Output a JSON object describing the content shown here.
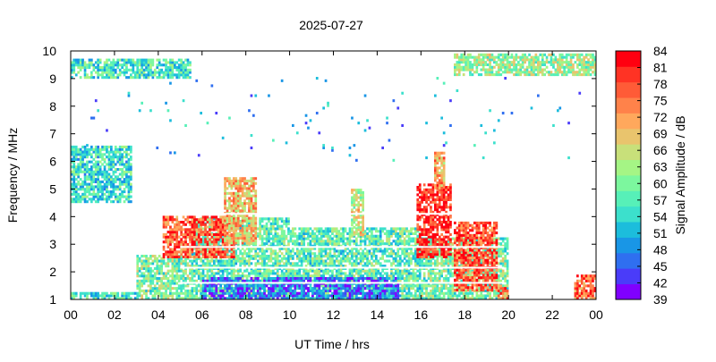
{
  "chart_data": {
    "type": "heatmap",
    "title": "2025-07-27",
    "xlabel": "UT Time / hrs",
    "ylabel": "Frequency / MHz",
    "colorbar_label": "Signal Amplitude / dB",
    "xlim": [
      0,
      24
    ],
    "ylim": [
      1,
      10
    ],
    "x_ticks": [
      "00",
      "02",
      "04",
      "06",
      "08",
      "10",
      "12",
      "14",
      "16",
      "18",
      "20",
      "22",
      "00"
    ],
    "y_ticks": [
      "1",
      "2",
      "3",
      "4",
      "5",
      "6",
      "7",
      "8",
      "9",
      "10"
    ],
    "colorbar_ticks": [
      "84",
      "81",
      "78",
      "75",
      "72",
      "69",
      "66",
      "63",
      "60",
      "57",
      "54",
      "51",
      "48",
      "45",
      "42",
      "39"
    ],
    "clim": [
      39,
      84
    ],
    "colormap": [
      "#8000ff",
      "#4a3cf9",
      "#2f6ff0",
      "#1996e6",
      "#1cbddc",
      "#3ce0cc",
      "#57f0b8",
      "#7cf79e",
      "#a5f585",
      "#c8e07a",
      "#e9c46d",
      "#ffa85c",
      "#ff824a",
      "#ff5b37",
      "#ff3324",
      "#ff0010"
    ],
    "regions": [
      {
        "t0": 0.0,
        "t1": 3.0,
        "f0": 1.0,
        "f1": 1.25,
        "level": 56
      },
      {
        "t0": 3.0,
        "t1": 5.5,
        "f0": 1.0,
        "f1": 2.6,
        "level": 60
      },
      {
        "t0": 5.5,
        "t1": 10.0,
        "f0": 1.0,
        "f1": 3.9,
        "level": 58
      },
      {
        "t0": 10.0,
        "t1": 16.0,
        "f0": 1.0,
        "f1": 3.6,
        "level": 58
      },
      {
        "t0": 16.0,
        "t1": 20.0,
        "f0": 1.0,
        "f1": 3.2,
        "level": 60
      },
      {
        "t0": 4.2,
        "t1": 7.5,
        "f0": 2.5,
        "f1": 4.0,
        "level": 77
      },
      {
        "t0": 7.0,
        "t1": 8.5,
        "f0": 3.0,
        "f1": 5.4,
        "level": 70
      },
      {
        "t0": 12.8,
        "t1": 13.4,
        "f0": 3.3,
        "f1": 5.0,
        "level": 66
      },
      {
        "t0": 15.8,
        "t1": 17.4,
        "f0": 2.5,
        "f1": 5.2,
        "level": 81
      },
      {
        "t0": 16.6,
        "t1": 17.1,
        "f0": 5.0,
        "f1": 6.3,
        "level": 72
      },
      {
        "t0": 17.5,
        "t1": 19.5,
        "f0": 1.3,
        "f1": 3.8,
        "level": 78
      },
      {
        "t0": 6.0,
        "t1": 15.0,
        "f0": 1.0,
        "f1": 1.8,
        "level": 46
      },
      {
        "t0": 19.5,
        "t1": 20.0,
        "f0": 1.0,
        "f1": 1.5,
        "level": 74
      },
      {
        "t0": 23.0,
        "t1": 24.0,
        "f0": 1.0,
        "f1": 1.9,
        "level": 77
      },
      {
        "t0": 0.0,
        "t1": 5.5,
        "f0": 9.0,
        "f1": 9.7,
        "level": 56
      },
      {
        "t0": 0.0,
        "t1": 2.8,
        "f0": 4.5,
        "f1": 6.5,
        "level": 55
      },
      {
        "t0": 17.5,
        "t1": 24.0,
        "f0": 9.1,
        "f1": 9.9,
        "level": 62
      },
      {
        "t0": 0.0,
        "t1": 24.0,
        "f0": 6.0,
        "f1": 9.0,
        "level": 50
      }
    ],
    "white_lines_mhz": [
      1.6,
      2.15,
      2.9,
      4.1
    ]
  }
}
